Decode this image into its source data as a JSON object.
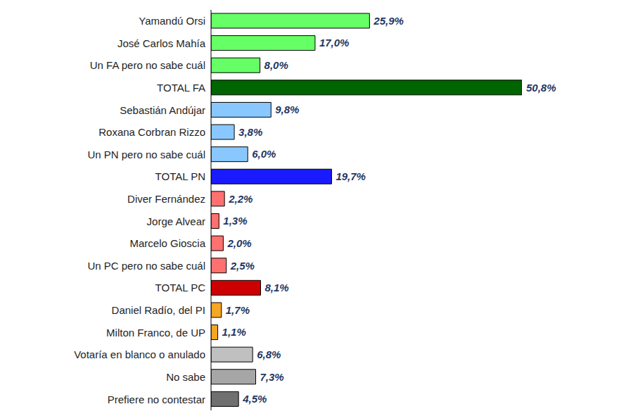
{
  "chart_data": {
    "type": "bar",
    "orientation": "horizontal",
    "tick_labels": "y",
    "data_labels": true,
    "grid": false,
    "categories": [
      "Yamandú Orsi",
      "José Carlos Mahía",
      "Un FA pero no sabe cuál",
      "TOTAL FA",
      "Sebastián Andújar",
      "Roxana Corbran Rizzo",
      "Un PN pero no sabe cuál",
      "TOTAL PN",
      "Diver Fernández",
      "Jorge Alvear",
      "Marcelo Gioscia",
      "Un PC pero no sabe cuál",
      "TOTAL PC",
      "Daniel Radío, del PI",
      "Milton Franco, de UP",
      "Votaría en blanco o anulado",
      "No sabe",
      "Prefiere no contestar"
    ],
    "values": [
      25.9,
      17.0,
      8.0,
      50.8,
      9.8,
      3.8,
      6.0,
      19.7,
      2.2,
      1.3,
      2.0,
      2.5,
      8.1,
      1.7,
      1.1,
      6.8,
      7.3,
      4.5
    ],
    "value_labels": [
      "25,9%",
      "17,0%",
      "8,0%",
      "50,8%",
      "9,8%",
      "3,8%",
      "6,0%",
      "19,7%",
      "2,2%",
      "1,3%",
      "2,0%",
      "2,5%",
      "8,1%",
      "1,7%",
      "1,1%",
      "6,8%",
      "7,3%",
      "4,5%"
    ],
    "colors": [
      "#66ff66",
      "#66ff66",
      "#66ff66",
      "#006400",
      "#88c8ff",
      "#88c8ff",
      "#88c8ff",
      "#1a1aff",
      "#ff7070",
      "#ff7070",
      "#ff7070",
      "#ff7070",
      "#cc0000",
      "#f5a623",
      "#f5a623",
      "#c0c0c0",
      "#a6a6a6",
      "#707070"
    ]
  }
}
